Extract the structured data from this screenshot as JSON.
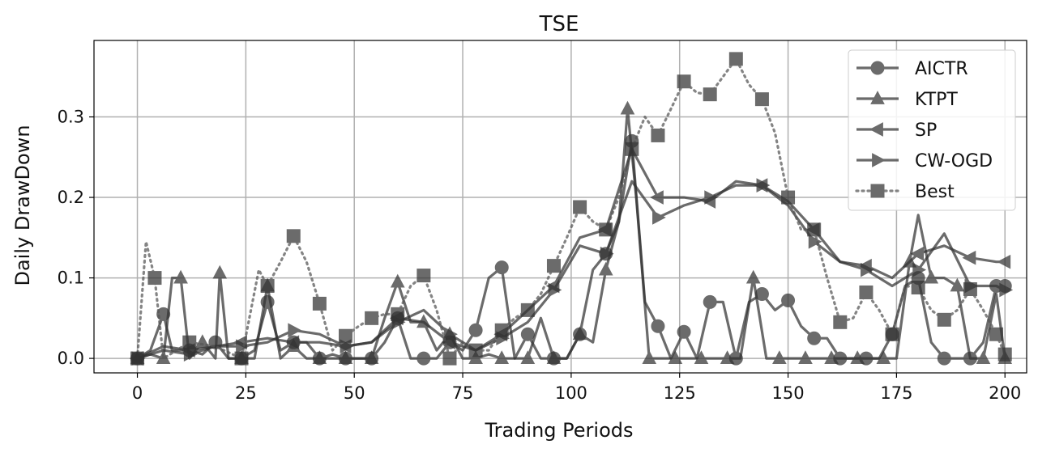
{
  "chart_data": {
    "type": "line",
    "title": "TSE",
    "xlabel": "Trading Periods",
    "ylabel": "Daily DrawDown",
    "xlim": [
      -10,
      205
    ],
    "ylim": [
      -0.018,
      0.395
    ],
    "x_ticks": [
      0,
      25,
      50,
      75,
      100,
      125,
      150,
      175,
      200
    ],
    "y_ticks": [
      0.0,
      0.1,
      0.2,
      0.3
    ],
    "y_tick_labels": [
      "0.0",
      "0.1",
      "0.2",
      "0.3"
    ],
    "grid": true,
    "legend_position": "top-right",
    "series": [
      {
        "name": "AICTR",
        "marker": "circle",
        "linestyle": "solid",
        "color": "#555555",
        "points": [
          [
            0,
            0
          ],
          [
            3,
            0.01
          ],
          [
            6,
            0.055
          ],
          [
            8,
            0.01
          ],
          [
            12,
            0.01
          ],
          [
            15,
            0.005
          ],
          [
            18,
            0.02
          ],
          [
            21,
            0.0
          ],
          [
            24,
            0.0
          ],
          [
            27,
            0.01
          ],
          [
            30,
            0.07
          ],
          [
            33,
            0.01
          ],
          [
            36,
            0.02
          ],
          [
            39,
            0.02
          ],
          [
            42,
            0.0
          ],
          [
            45,
            0.005
          ],
          [
            48,
            0.0
          ],
          [
            51,
            0.0
          ],
          [
            54,
            0.0
          ],
          [
            57,
            0.02
          ],
          [
            60,
            0.05
          ],
          [
            63,
            0.0
          ],
          [
            66,
            0.0
          ],
          [
            69,
            0.0
          ],
          [
            72,
            0.02
          ],
          [
            75,
            0.01
          ],
          [
            78,
            0.035
          ],
          [
            81,
            0.1
          ],
          [
            84,
            0.113
          ],
          [
            87,
            0.0
          ],
          [
            90,
            0.03
          ],
          [
            93,
            0.0
          ],
          [
            96,
            0.0
          ],
          [
            99,
            0.0
          ],
          [
            102,
            0.03
          ],
          [
            105,
            0.11
          ],
          [
            108,
            0.13
          ],
          [
            111,
            0.17
          ],
          [
            114,
            0.27
          ],
          [
            117,
            0.07
          ],
          [
            120,
            0.04
          ],
          [
            123,
            0.0
          ],
          [
            126,
            0.033
          ],
          [
            129,
            0.0
          ],
          [
            132,
            0.07
          ],
          [
            135,
            0.07
          ],
          [
            138,
            0.0
          ],
          [
            141,
            0.07
          ],
          [
            144,
            0.08
          ],
          [
            147,
            0.06
          ],
          [
            150,
            0.072
          ],
          [
            153,
            0.04
          ],
          [
            156,
            0.025
          ],
          [
            159,
            0.025
          ],
          [
            162,
            0.0
          ],
          [
            165,
            0.0
          ],
          [
            168,
            0.0
          ],
          [
            171,
            0.0
          ],
          [
            174,
            0.03
          ],
          [
            177,
            0.09
          ],
          [
            180,
            0.1
          ],
          [
            183,
            0.02
          ],
          [
            186,
            0.0
          ],
          [
            189,
            0.0
          ],
          [
            192,
            0.0
          ],
          [
            195,
            0.02
          ],
          [
            198,
            0.09
          ],
          [
            200,
            0.09
          ]
        ]
      },
      {
        "name": "KTPT",
        "marker": "triangle-up",
        "linestyle": "solid",
        "color": "#666666",
        "points": [
          [
            0,
            0
          ],
          [
            3,
            0.005
          ],
          [
            6,
            0.0
          ],
          [
            8,
            0.1
          ],
          [
            10,
            0.1
          ],
          [
            12,
            0.0
          ],
          [
            15,
            0.02
          ],
          [
            18,
            0.0
          ],
          [
            19,
            0.106
          ],
          [
            21,
            0.0
          ],
          [
            24,
            0.0
          ],
          [
            27,
            0.0
          ],
          [
            30,
            0.09
          ],
          [
            33,
            0.0
          ],
          [
            36,
            0.015
          ],
          [
            39,
            0.0
          ],
          [
            42,
            0.0
          ],
          [
            45,
            0.0
          ],
          [
            48,
            0.0
          ],
          [
            51,
            0.0
          ],
          [
            54,
            0.0
          ],
          [
            57,
            0.05
          ],
          [
            60,
            0.095
          ],
          [
            63,
            0.045
          ],
          [
            66,
            0.045
          ],
          [
            69,
            0.01
          ],
          [
            72,
            0.03
          ],
          [
            75,
            0.0
          ],
          [
            78,
            0.0
          ],
          [
            81,
            0.005
          ],
          [
            84,
            0.0
          ],
          [
            87,
            0.0
          ],
          [
            90,
            0.0
          ],
          [
            93,
            0.05
          ],
          [
            96,
            0.0
          ],
          [
            99,
            0.0
          ],
          [
            102,
            0.03
          ],
          [
            105,
            0.02
          ],
          [
            108,
            0.11
          ],
          [
            111,
            0.17
          ],
          [
            113,
            0.31
          ],
          [
            115,
            0.2
          ],
          [
            118,
            0.0
          ],
          [
            121,
            0.0
          ],
          [
            124,
            0.0
          ],
          [
            127,
            0.0
          ],
          [
            130,
            0.0
          ],
          [
            133,
            0.0
          ],
          [
            136,
            0.0
          ],
          [
            139,
            0.0
          ],
          [
            142,
            0.1
          ],
          [
            145,
            0.0
          ],
          [
            148,
            0.0
          ],
          [
            151,
            0.0
          ],
          [
            154,
            0.0
          ],
          [
            157,
            0.0
          ],
          [
            160,
            0.0
          ],
          [
            163,
            0.0
          ],
          [
            166,
            0.0
          ],
          [
            169,
            0.0
          ],
          [
            172,
            0.0
          ],
          [
            175,
            0.0
          ],
          [
            178,
            0.12
          ],
          [
            180,
            0.178
          ],
          [
            183,
            0.1
          ],
          [
            186,
            0.1
          ],
          [
            189,
            0.09
          ],
          [
            192,
            0.0
          ],
          [
            195,
            0.0
          ],
          [
            198,
            0.08
          ],
          [
            200,
            0.0
          ]
        ]
      },
      {
        "name": "SP",
        "marker": "triangle-left",
        "linestyle": "solid",
        "color": "#555555",
        "points": [
          [
            0,
            0
          ],
          [
            6,
            0.015
          ],
          [
            12,
            0.01
          ],
          [
            18,
            0.015
          ],
          [
            24,
            0.02
          ],
          [
            30,
            0.025
          ],
          [
            36,
            0.02
          ],
          [
            42,
            0.02
          ],
          [
            48,
            0.015
          ],
          [
            54,
            0.02
          ],
          [
            60,
            0.05
          ],
          [
            66,
            0.045
          ],
          [
            72,
            0.02
          ],
          [
            78,
            0.01
          ],
          [
            84,
            0.03
          ],
          [
            90,
            0.06
          ],
          [
            96,
            0.09
          ],
          [
            102,
            0.15
          ],
          [
            108,
            0.16
          ],
          [
            114,
            0.26
          ],
          [
            120,
            0.2
          ],
          [
            126,
            0.2
          ],
          [
            132,
            0.195
          ],
          [
            138,
            0.22
          ],
          [
            144,
            0.215
          ],
          [
            150,
            0.195
          ],
          [
            156,
            0.16
          ],
          [
            162,
            0.12
          ],
          [
            168,
            0.115
          ],
          [
            174,
            0.1
          ],
          [
            180,
            0.13
          ],
          [
            186,
            0.14
          ],
          [
            192,
            0.125
          ],
          [
            198,
            0.12
          ],
          [
            200,
            0.12
          ]
        ]
      },
      {
        "name": "CW-OGD",
        "marker": "triangle-right",
        "linestyle": "solid",
        "color": "#555555",
        "points": [
          [
            0,
            0
          ],
          [
            6,
            0.01
          ],
          [
            12,
            0.005
          ],
          [
            18,
            0.015
          ],
          [
            24,
            0.015
          ],
          [
            30,
            0.02
          ],
          [
            36,
            0.035
          ],
          [
            42,
            0.03
          ],
          [
            48,
            0.015
          ],
          [
            54,
            0.02
          ],
          [
            60,
            0.045
          ],
          [
            66,
            0.06
          ],
          [
            72,
            0.03
          ],
          [
            78,
            0.01
          ],
          [
            84,
            0.025
          ],
          [
            90,
            0.045
          ],
          [
            96,
            0.085
          ],
          [
            102,
            0.14
          ],
          [
            108,
            0.13
          ],
          [
            114,
            0.22
          ],
          [
            120,
            0.175
          ],
          [
            126,
            0.19
          ],
          [
            132,
            0.2
          ],
          [
            138,
            0.215
          ],
          [
            144,
            0.215
          ],
          [
            150,
            0.19
          ],
          [
            156,
            0.145
          ],
          [
            162,
            0.12
          ],
          [
            168,
            0.11
          ],
          [
            174,
            0.09
          ],
          [
            180,
            0.11
          ],
          [
            186,
            0.155
          ],
          [
            192,
            0.09
          ],
          [
            198,
            0.09
          ],
          [
            200,
            0.085
          ]
        ]
      },
      {
        "name": "Best",
        "marker": "square",
        "linestyle": "dotted",
        "color": "#777777",
        "points": [
          [
            0,
            0
          ],
          [
            2,
            0.145
          ],
          [
            4,
            0.1
          ],
          [
            6,
            0.0
          ],
          [
            12,
            0.02
          ],
          [
            18,
            0.015
          ],
          [
            24,
            0.0
          ],
          [
            28,
            0.11
          ],
          [
            30,
            0.09
          ],
          [
            33,
            0.12
          ],
          [
            36,
            0.152
          ],
          [
            39,
            0.12
          ],
          [
            42,
            0.068
          ],
          [
            45,
            0.01
          ],
          [
            48,
            0.028
          ],
          [
            51,
            0.04
          ],
          [
            54,
            0.05
          ],
          [
            57,
            0.055
          ],
          [
            60,
            0.055
          ],
          [
            63,
            0.09
          ],
          [
            66,
            0.103
          ],
          [
            69,
            0.06
          ],
          [
            72,
            0.0
          ],
          [
            75,
            0.02
          ],
          [
            78,
            0.01
          ],
          [
            81,
            0.01
          ],
          [
            84,
            0.035
          ],
          [
            87,
            0.05
          ],
          [
            90,
            0.06
          ],
          [
            93,
            0.08
          ],
          [
            96,
            0.115
          ],
          [
            99,
            0.15
          ],
          [
            102,
            0.188
          ],
          [
            105,
            0.17
          ],
          [
            108,
            0.16
          ],
          [
            111,
            0.2
          ],
          [
            114,
            0.26
          ],
          [
            117,
            0.3
          ],
          [
            120,
            0.277
          ],
          [
            123,
            0.31
          ],
          [
            126,
            0.344
          ],
          [
            129,
            0.33
          ],
          [
            132,
            0.328
          ],
          [
            135,
            0.35
          ],
          [
            138,
            0.372
          ],
          [
            141,
            0.34
          ],
          [
            144,
            0.322
          ],
          [
            147,
            0.28
          ],
          [
            150,
            0.2
          ],
          [
            153,
            0.16
          ],
          [
            156,
            0.16
          ],
          [
            159,
            0.1
          ],
          [
            162,
            0.045
          ],
          [
            165,
            0.05
          ],
          [
            168,
            0.082
          ],
          [
            171,
            0.06
          ],
          [
            174,
            0.03
          ],
          [
            177,
            0.09
          ],
          [
            180,
            0.088
          ],
          [
            183,
            0.06
          ],
          [
            186,
            0.048
          ],
          [
            189,
            0.06
          ],
          [
            192,
            0.086
          ],
          [
            195,
            0.06
          ],
          [
            198,
            0.03
          ],
          [
            200,
            0.005
          ]
        ]
      }
    ]
  }
}
